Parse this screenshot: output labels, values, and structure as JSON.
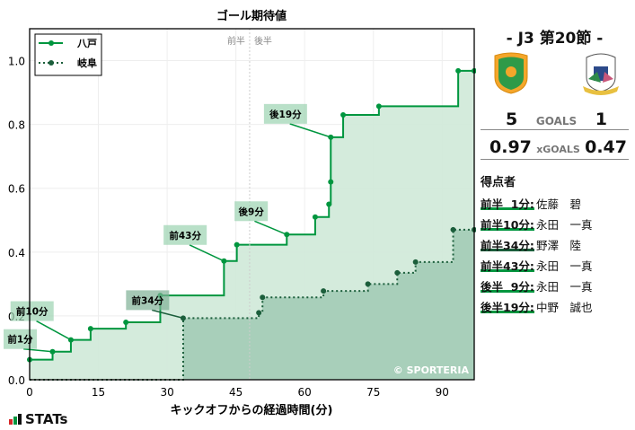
{
  "chart_data": {
    "type": "line",
    "step": true,
    "title": "ゴール期待値",
    "xlabel": "キックオフからの経過時間(分)",
    "ylabel": "",
    "xlim": [
      0,
      97
    ],
    "ylim": [
      0,
      1.1
    ],
    "xticks": [
      0,
      15,
      30,
      45,
      60,
      75,
      90
    ],
    "yticks": [
      "0.0",
      "0.2",
      "0.4",
      "0.6",
      "0.8",
      "1.0"
    ],
    "grid": true,
    "legend_placement": "top-left",
    "half_time": 48,
    "half_labels": [
      "前半",
      "後半"
    ],
    "watermark": "© SPORTERIA",
    "series": [
      {
        "name": "八戸",
        "color": "#00963f",
        "style": "solid",
        "fill": "#cfe9d8",
        "points": [
          [
            0,
            0.063
          ],
          [
            5,
            0.088
          ],
          [
            9,
            0.125
          ],
          [
            13.3,
            0.16
          ],
          [
            21,
            0.18
          ],
          [
            28.5,
            0.264
          ],
          [
            42.4,
            0.372
          ],
          [
            45.2,
            0.423
          ],
          [
            56.1,
            0.455
          ],
          [
            62.3,
            0.51
          ],
          [
            65.3,
            0.55
          ],
          [
            65.7,
            0.62
          ],
          [
            65.7,
            0.76
          ],
          [
            68.4,
            0.83
          ],
          [
            76.2,
            0.857
          ],
          [
            93.5,
            0.968
          ],
          [
            97,
            0.968
          ]
        ]
      },
      {
        "name": "岐阜",
        "color": "#1b5e3b",
        "style": "dotted",
        "fill": "#a3ccb6",
        "points": [
          [
            0,
            0
          ],
          [
            33.5,
            0.193
          ],
          [
            50,
            0.21
          ],
          [
            50.8,
            0.258
          ],
          [
            64.1,
            0.278
          ],
          [
            73.8,
            0.3
          ],
          [
            80.2,
            0.335
          ],
          [
            84.2,
            0.369
          ],
          [
            92.4,
            0.47
          ],
          [
            97,
            0.47
          ]
        ]
      }
    ],
    "annotations": [
      {
        "text": "前1分",
        "series": 0,
        "x": 5,
        "y": 0.088
      },
      {
        "text": "前10分",
        "series": 0,
        "x": 9,
        "y": 0.125
      },
      {
        "text": "前34分",
        "series": 1,
        "x": 33.5,
        "y": 0.193
      },
      {
        "text": "前43分",
        "series": 0,
        "x": 42.4,
        "y": 0.372
      },
      {
        "text": "後9分",
        "series": 0,
        "x": 56.1,
        "y": 0.455
      },
      {
        "text": "後19分",
        "series": 0,
        "x": 65.7,
        "y": 0.76
      }
    ]
  },
  "match": {
    "title": "-  J3 第20節  -",
    "home": "八戸",
    "away": "岐阜"
  },
  "goals": {
    "home": "5",
    "label": "GOALS",
    "away": "1"
  },
  "xgoals": {
    "home": "0.97",
    "label": "xGOALS",
    "away": "0.47"
  },
  "scorers": {
    "title": "得点者",
    "items": [
      {
        "time": "前半  1分:",
        "player": "佐藤　碧",
        "team": "home"
      },
      {
        "time": "前半10分:",
        "player": "永田　一真",
        "team": "home"
      },
      {
        "time": "前半34分:",
        "player": "野澤　陸",
        "team": "away"
      },
      {
        "time": "前半43分:",
        "player": "永田　一真",
        "team": "home"
      },
      {
        "time": "後半  9分:",
        "player": "永田　一真",
        "team": "home"
      },
      {
        "time": "後半19分:",
        "player": "中野　誠也",
        "team": "home"
      }
    ]
  },
  "brand": "STATs"
}
